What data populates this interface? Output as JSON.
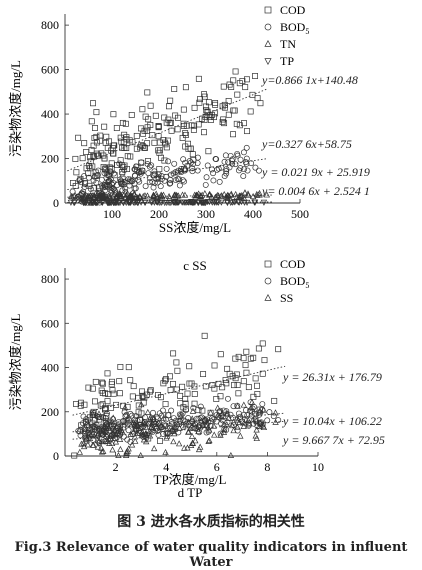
{
  "figure": {
    "caption_cn": "图 3   进水各水质指标的相关性",
    "caption_en": "Fig.3   Relevance of water quality indicators in influent Water"
  },
  "chart_data": [
    {
      "type": "scatter",
      "panel_label": "c SS",
      "xlabel": "SS浓度/mg/L",
      "ylabel": "污染物浓度/mg/L",
      "xlim": [
        0,
        500
      ],
      "ylim": [
        0,
        850
      ],
      "xticks": [
        100,
        200,
        300,
        400,
        500
      ],
      "yticks": [
        0,
        200,
        400,
        600,
        800
      ],
      "legend_position": "top-right",
      "series": [
        {
          "name": "COD",
          "marker": "square",
          "n_points": 220,
          "trend": {
            "slope": 0.8661,
            "intercept": 140.48,
            "label": "y=0.866 1x+140.48"
          },
          "x_range": [
            5,
            430
          ],
          "spread": 120
        },
        {
          "name": "BOD5",
          "legend_text": "BOD",
          "legend_sub": "5",
          "marker": "circle",
          "n_points": 200,
          "trend": {
            "slope": 0.3276,
            "intercept": 58.75,
            "label": "y=0.327 6x+58.75"
          },
          "x_range": [
            5,
            430
          ],
          "spread": 45
        },
        {
          "name": "TN",
          "marker": "triangle-up",
          "n_points": 160,
          "trend": {
            "slope": 0.0219,
            "intercept": 25.919,
            "label": "y = 0.021 9x + 25.919"
          },
          "x_range": [
            5,
            440
          ],
          "spread": 8
        },
        {
          "name": "TP",
          "marker": "triangle-down",
          "n_points": 140,
          "trend": {
            "slope": 0.0046,
            "intercept": 2.5241,
            "label": "y= 0.004 6x + 2.524 1"
          },
          "x_range": [
            5,
            440
          ],
          "spread": 2
        }
      ]
    },
    {
      "type": "scatter",
      "panel_label": "d TP",
      "xlabel": "TP浓度/mg/L",
      "ylabel": "污染物浓度/mg/L",
      "xlim": [
        0,
        10
      ],
      "ylim": [
        0,
        850
      ],
      "xticks": [
        2,
        4,
        6,
        8,
        10
      ],
      "yticks": [
        0,
        200,
        400,
        600,
        800
      ],
      "legend_position": "top-right",
      "series": [
        {
          "name": "COD",
          "marker": "square",
          "n_points": 150,
          "trend": {
            "slope": 26.31,
            "intercept": 176.79,
            "label": "y = 26.31x + 176.79"
          },
          "x_range": [
            0.3,
            8.7
          ],
          "spread": 120
        },
        {
          "name": "BOD5",
          "legend_text": "BOD",
          "legend_sub": "5",
          "marker": "circle",
          "n_points": 260,
          "trend": {
            "slope": 10.04,
            "intercept": 106.22,
            "label": "y = 10.04x + 106.22"
          },
          "x_range": [
            0.3,
            8.7
          ],
          "spread": 45
        },
        {
          "name": "SS",
          "marker": "triangle-up",
          "n_points": 190,
          "trend": {
            "slope": 9.6677,
            "intercept": 72.95,
            "label": "y = 9.667 7x + 72.95"
          },
          "x_range": [
            0.3,
            8.7
          ],
          "spread": 70
        }
      ]
    }
  ]
}
